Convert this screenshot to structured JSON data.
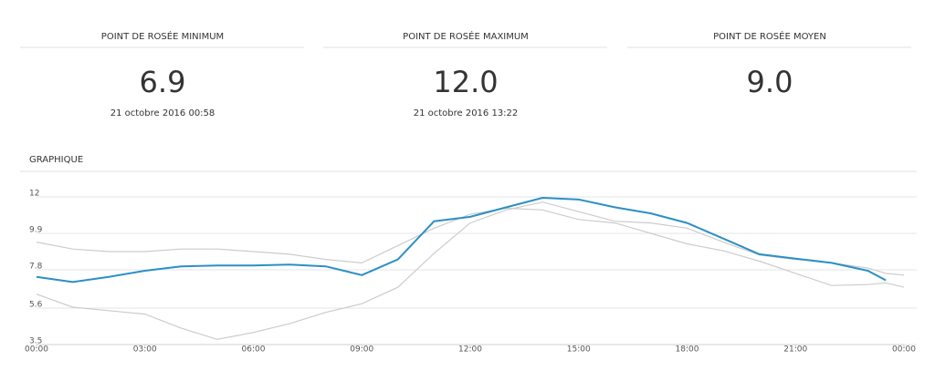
{
  "stats": [
    {
      "title": "POINT DE ROSÉE MINIMUM",
      "value": "6.9",
      "date": "21 octobre 2016 00:58"
    },
    {
      "title": "POINT DE ROSÉE MAXIMUM",
      "value": "12.0",
      "date": "21 octobre 2016 13:22"
    },
    {
      "title": "POINT DE ROSÉE MOYEN",
      "value": "9.0"
    }
  ],
  "section_title": "GRAPHIQUE",
  "chart_data": {
    "type": "line",
    "x": [
      0,
      1,
      2,
      3,
      4,
      5,
      6,
      7,
      8,
      9,
      10,
      11,
      12,
      13,
      14,
      15,
      16,
      17,
      18,
      19,
      20,
      21,
      22,
      23,
      23.5,
      24
    ],
    "series": [
      {
        "color": "#cccccc",
        "values": [
          9.4,
          9.0,
          8.85,
          8.85,
          9.0,
          9.0,
          8.85,
          8.7,
          8.4,
          8.2,
          9.2,
          10.2,
          11.0,
          11.35,
          11.25,
          10.7,
          10.5,
          9.9,
          9.3,
          8.9,
          8.3,
          7.6,
          6.9,
          6.95,
          7.05,
          6.8
        ]
      },
      {
        "color": "#cccccc",
        "values": [
          6.4,
          5.65,
          5.45,
          5.25,
          4.45,
          3.8,
          4.2,
          4.7,
          5.35,
          5.85,
          6.8,
          8.75,
          10.5,
          11.25,
          11.7,
          11.15,
          10.6,
          10.5,
          10.2,
          9.4,
          8.65,
          8.4,
          8.2,
          7.9,
          7.6,
          7.5
        ]
      },
      {
        "color": "#2b90c4",
        "values": [
          7.4,
          7.1,
          7.4,
          7.75,
          8.0,
          8.05,
          8.05,
          8.1,
          8.0,
          7.5,
          8.4,
          10.6,
          10.85,
          11.4,
          11.95,
          11.85,
          11.4,
          11.05,
          10.5,
          9.6,
          8.7,
          8.45,
          8.2,
          7.75,
          7.2,
          null
        ]
      }
    ],
    "xlim": [
      0,
      24
    ],
    "xticks": [
      {
        "value": 0,
        "label": "00:00"
      },
      {
        "value": 3,
        "label": "03:00"
      },
      {
        "value": 6,
        "label": "06:00"
      },
      {
        "value": 9,
        "label": "09:00"
      },
      {
        "value": 12,
        "label": "12:00"
      },
      {
        "value": 15,
        "label": "15:00"
      },
      {
        "value": 18,
        "label": "18:00"
      },
      {
        "value": 21,
        "label": "21:00"
      },
      {
        "value": 24,
        "label": "00:00"
      }
    ],
    "ylim": [
      3.5,
      12
    ],
    "yticks": [
      3.5,
      5.6,
      7.8,
      9.9,
      12
    ],
    "grid": true
  }
}
